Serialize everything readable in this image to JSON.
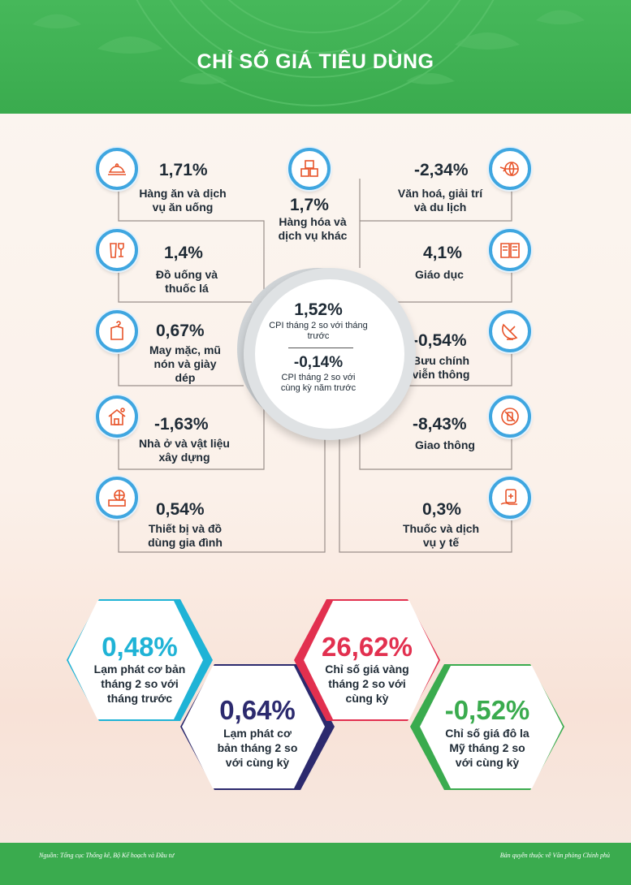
{
  "title": "CHỈ SỐ GIÁ TIÊU DÙNG",
  "accent_color": "#3aab4e",
  "icon_ring_color": "#3fa6e0",
  "categories": [
    {
      "icon": "food-tray-icon",
      "value": "1,71%",
      "label": "Hàng ăn và dịch vụ ăn uống"
    },
    {
      "icon": "drinks-icon",
      "value": "1,4%",
      "label": "Đồ uống và thuốc lá"
    },
    {
      "icon": "clothing-icon",
      "value": "0,67%",
      "label": "May mặc, mũ nón và giày dép"
    },
    {
      "icon": "house-icon",
      "value": "-1,63%",
      "label": "Nhà ở và vật liệu xây dựng"
    },
    {
      "icon": "appliance-icon",
      "value": "0,54%",
      "label": "Thiết bị và đồ dùng gia đình"
    },
    {
      "icon": "boxes-icon",
      "value": "1,7%",
      "label": "Hàng hóa và dịch vụ khác"
    },
    {
      "icon": "globe-plane-icon",
      "value": "-2,34%",
      "label": "Văn hoá, giải trí và du lịch"
    },
    {
      "icon": "book-icon",
      "value": "4,1%",
      "label": "Giáo dục"
    },
    {
      "icon": "satellite-icon",
      "value": "-0,54%",
      "label": "Bưu chính viễn thông"
    },
    {
      "icon": "traffic-icon",
      "value": "-8,43%",
      "label": "Giao thông"
    },
    {
      "icon": "medicine-icon",
      "value": "0,3%",
      "label": "Thuốc và dịch vụ y tế"
    }
  ],
  "center": {
    "mom_value": "1,52%",
    "mom_label": "CPI tháng 2 so với tháng trước",
    "yoy_value": "-0,14%",
    "yoy_label": "CPI tháng 2 so với cùng kỳ năm trước"
  },
  "hexagons": [
    {
      "value": "0,48%",
      "label": "Lạm phát cơ bản tháng 2 so với tháng trước",
      "color": "#1fb3d6"
    },
    {
      "value": "0,64%",
      "label": "Lạm phát cơ bản tháng 2 so với cùng kỳ",
      "color": "#2c2a6e"
    },
    {
      "value": "26,62%",
      "label": "Chỉ số giá vàng tháng 2 so với cùng kỳ",
      "color": "#e2304f"
    },
    {
      "value": "-0,52%",
      "label": "Chỉ số giá đô la Mỹ tháng 2 so với cùng kỳ",
      "color": "#3aab4e"
    }
  ],
  "footer": {
    "source": "Nguồn: Tổng cục Thống kê, Bộ Kế hoạch và Đầu tư",
    "copyright": "Bản quyền thuộc về Văn phòng Chính phủ"
  }
}
